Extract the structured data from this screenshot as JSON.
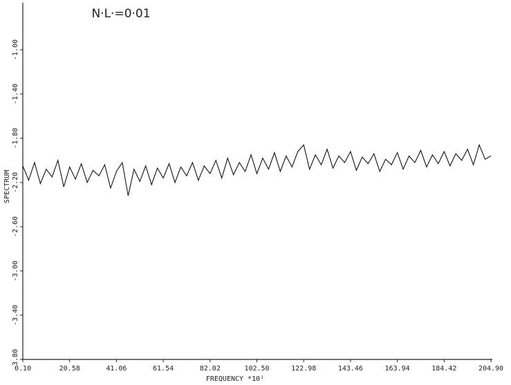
{
  "chart_data": {
    "type": "line",
    "title": "N·L·=0·01",
    "xlabel": "FREQUENCY   *10¹",
    "ylabel": "SPECTRUM",
    "x": [
      0.1,
      2.66,
      5.22,
      7.78,
      10.34,
      12.9,
      15.46,
      18.02,
      20.58,
      23.14,
      25.7,
      28.26,
      30.82,
      33.38,
      35.94,
      38.5,
      41.06,
      43.62,
      46.18,
      48.74,
      51.3,
      53.86,
      56.42,
      58.98,
      61.54,
      64.1,
      66.66,
      69.22,
      71.78,
      74.34,
      76.9,
      79.46,
      82.02,
      84.58,
      87.14,
      89.7,
      92.26,
      94.82,
      97.38,
      99.94,
      102.5,
      105.06,
      107.62,
      110.18,
      112.74,
      115.3,
      117.86,
      120.42,
      122.98,
      125.54,
      128.1,
      130.66,
      133.22,
      135.78,
      138.34,
      140.9,
      143.46,
      146.02,
      148.58,
      151.14,
      153.7,
      156.26,
      158.82,
      161.38,
      163.94,
      166.5,
      169.06,
      171.62,
      174.18,
      176.74,
      179.3,
      181.86,
      184.42,
      186.98,
      189.54,
      192.1,
      194.66,
      197.22,
      199.78,
      202.34,
      204.9
    ],
    "series": [
      {
        "color": "#111111",
        "values": [
          -2.05,
          -2.18,
          -2.02,
          -2.21,
          -2.08,
          -2.15,
          -2.0,
          -2.24,
          -2.06,
          -2.17,
          -2.03,
          -2.2,
          -2.09,
          -2.14,
          -2.04,
          -2.25,
          -2.1,
          -2.02,
          -2.32,
          -2.08,
          -2.19,
          -2.05,
          -2.22,
          -2.07,
          -2.16,
          -2.03,
          -2.2,
          -2.06,
          -2.14,
          -2.02,
          -2.18,
          -2.05,
          -2.12,
          -2.0,
          -2.16,
          -1.98,
          -2.13,
          -2.02,
          -2.1,
          -1.95,
          -2.12,
          -1.98,
          -2.08,
          -1.93,
          -2.1,
          -1.96,
          -2.06,
          -1.92,
          -1.86,
          -2.08,
          -1.95,
          -2.04,
          -1.9,
          -2.07,
          -1.96,
          -2.02,
          -1.92,
          -2.09,
          -1.97,
          -2.03,
          -1.94,
          -2.1,
          -1.99,
          -2.04,
          -1.93,
          -2.08,
          -1.96,
          -2.02,
          -1.91,
          -2.06,
          -1.95,
          -2.03,
          -1.92,
          -2.05,
          -1.94,
          -2.0,
          -1.9,
          -2.04,
          -1.86,
          -1.99,
          -1.96
        ]
      }
    ],
    "xlim": [
      0.1,
      204.9
    ],
    "xticks": [
      {
        "value": 0.1,
        "label": "0.10"
      },
      {
        "value": 20.58,
        "label": "20.58"
      },
      {
        "value": 41.06,
        "label": "41.06"
      },
      {
        "value": 61.54,
        "label": "61.54"
      },
      {
        "value": 82.02,
        "label": "82.02"
      },
      {
        "value": 102.5,
        "label": "102.50"
      },
      {
        "value": 122.98,
        "label": "122.98"
      },
      {
        "value": 143.46,
        "label": "143.46"
      },
      {
        "value": 163.94,
        "label": "163.94"
      },
      {
        "value": 184.42,
        "label": "184.42"
      },
      {
        "value": 204.9,
        "label": "204.90"
      }
    ],
    "ylim": [
      -3.8,
      -0.6
    ],
    "yticks": [
      {
        "value": -3.8,
        "label": "-3.80"
      },
      {
        "value": -3.4,
        "label": "-3.40"
      },
      {
        "value": -3.0,
        "label": "-3.00"
      },
      {
        "value": -2.6,
        "label": "-2.60"
      },
      {
        "value": -2.2,
        "label": "-2.20"
      },
      {
        "value": -1.8,
        "label": "-1.80"
      },
      {
        "value": -1.4,
        "label": "-1.40"
      },
      {
        "value": -1.0,
        "label": "-1.00"
      }
    ]
  }
}
